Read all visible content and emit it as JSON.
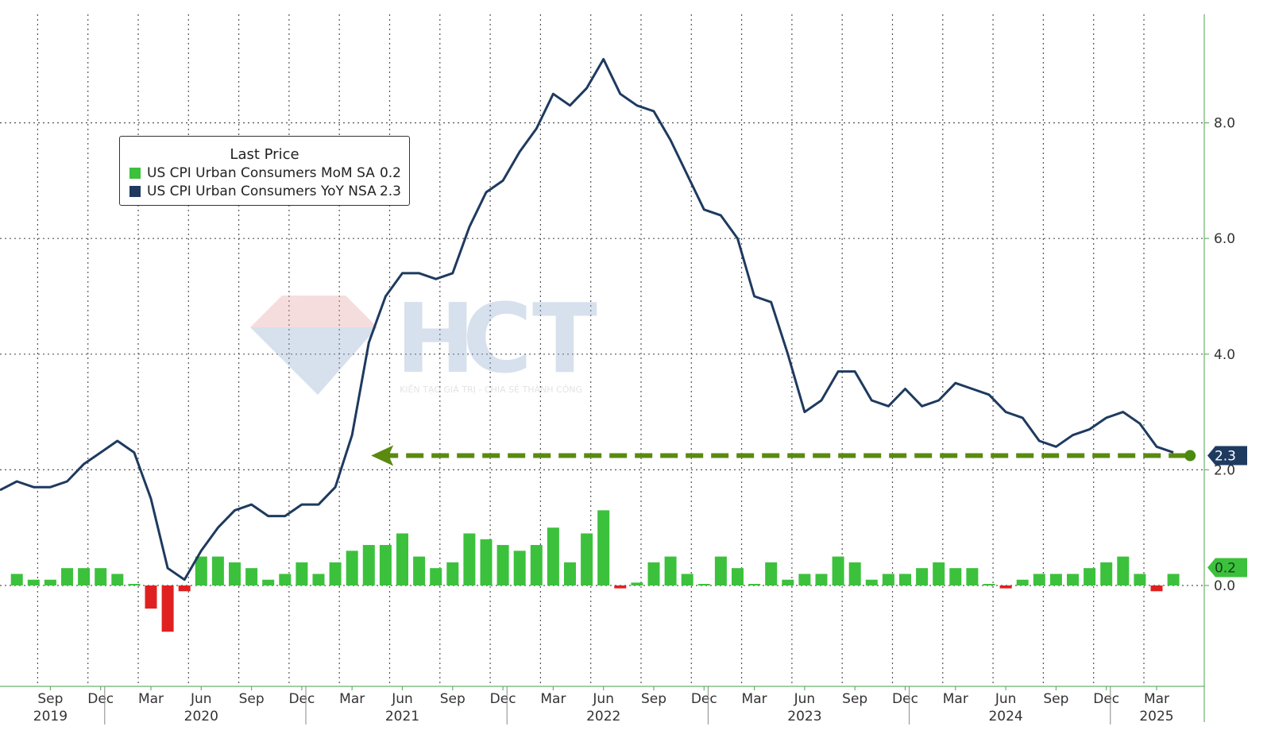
{
  "chart_data": {
    "type": "bar+line",
    "x_start": "2019-07",
    "x_axis": {
      "month_labels": [
        {
          "label": "Sep",
          "date": "2019-09"
        },
        {
          "label": "Dec",
          "date": "2019-12"
        },
        {
          "label": "Mar",
          "date": "2020-03"
        },
        {
          "label": "Jun",
          "date": "2020-06"
        },
        {
          "label": "Sep",
          "date": "2020-09"
        },
        {
          "label": "Dec",
          "date": "2020-12"
        },
        {
          "label": "Mar",
          "date": "2021-03"
        },
        {
          "label": "Jun",
          "date": "2021-06"
        },
        {
          "label": "Sep",
          "date": "2021-09"
        },
        {
          "label": "Dec",
          "date": "2021-12"
        },
        {
          "label": "Mar",
          "date": "2022-03"
        },
        {
          "label": "Jun",
          "date": "2022-06"
        },
        {
          "label": "Sep",
          "date": "2022-09"
        },
        {
          "label": "Dec",
          "date": "2022-12"
        },
        {
          "label": "Mar",
          "date": "2023-03"
        },
        {
          "label": "Jun",
          "date": "2023-06"
        },
        {
          "label": "Sep",
          "date": "2023-09"
        },
        {
          "label": "Dec",
          "date": "2023-12"
        },
        {
          "label": "Mar",
          "date": "2024-03"
        },
        {
          "label": "Jun",
          "date": "2024-06"
        },
        {
          "label": "Sep",
          "date": "2024-09"
        },
        {
          "label": "Dec",
          "date": "2024-12"
        },
        {
          "label": "Mar",
          "date": "2025-03"
        }
      ],
      "year_labels": [
        {
          "label": "2019",
          "date": "2019-09"
        },
        {
          "label": "2020",
          "date": "2020-06"
        },
        {
          "label": "2021",
          "date": "2021-06"
        },
        {
          "label": "2022",
          "date": "2022-06"
        },
        {
          "label": "2023",
          "date": "2023-06"
        },
        {
          "label": "2024",
          "date": "2024-06"
        },
        {
          "label": "2025",
          "date": "2025-03"
        }
      ]
    },
    "y_axis": {
      "side": "right",
      "range": [
        -1.8,
        9.8
      ],
      "tick_labels": [
        "0.0",
        "2.0",
        "4.0",
        "6.0",
        "8.0"
      ],
      "tick_values": [
        0,
        2,
        4,
        6,
        8
      ]
    },
    "grid": true,
    "legend": {
      "title": "Last Price",
      "position": "top-left",
      "entries": [
        {
          "name": "US CPI Urban Consumers MoM SA",
          "value": "0.2",
          "color": "#3cc13c"
        },
        {
          "name": "US CPI Urban Consumers YoY NSA",
          "value": "2.3",
          "color": "#1e3a5f"
        }
      ]
    },
    "series": [
      {
        "name": "US CPI Urban Consumers MoM SA",
        "kind": "bar",
        "positive_color": "#3cc13c",
        "negative_color": "#e02020",
        "values": [
          0.2,
          0.1,
          0.1,
          0.3,
          0.3,
          0.3,
          0.2,
          0.0,
          -0.4,
          -0.8,
          -0.1,
          0.5,
          0.5,
          0.4,
          0.3,
          0.1,
          0.2,
          0.4,
          0.2,
          0.4,
          0.6,
          0.7,
          0.7,
          0.9,
          0.5,
          0.3,
          0.4,
          0.9,
          0.8,
          0.7,
          0.6,
          0.7,
          1.0,
          0.4,
          0.9,
          1.3,
          -0.05,
          0.05,
          0.4,
          0.5,
          0.2,
          0.0,
          0.5,
          0.3,
          0.0,
          0.4,
          0.1,
          0.2,
          0.2,
          0.5,
          0.4,
          0.1,
          0.2,
          0.2,
          0.3,
          0.4,
          0.3,
          0.3,
          0.0,
          -0.05,
          0.1,
          0.2,
          0.2,
          0.2,
          0.3,
          0.4,
          0.5,
          0.2,
          -0.1,
          0.2
        ]
      },
      {
        "name": "US CPI Urban Consumers YoY NSA",
        "kind": "line",
        "color": "#1e3a5f",
        "values": [
          1.8,
          1.7,
          1.7,
          1.8,
          2.1,
          2.3,
          2.5,
          2.3,
          1.5,
          0.3,
          0.1,
          0.6,
          1.0,
          1.3,
          1.4,
          1.2,
          1.2,
          1.4,
          1.4,
          1.7,
          2.6,
          4.2,
          5.0,
          5.4,
          5.4,
          5.3,
          5.4,
          6.2,
          6.8,
          7.0,
          7.5,
          7.9,
          8.5,
          8.3,
          8.6,
          9.1,
          8.5,
          8.3,
          8.2,
          7.7,
          7.1,
          6.5,
          6.4,
          6.0,
          5.0,
          4.9,
          4.0,
          3.0,
          3.2,
          3.7,
          3.7,
          3.2,
          3.1,
          3.4,
          3.1,
          3.2,
          3.5,
          3.4,
          3.3,
          3.0,
          2.9,
          2.5,
          2.4,
          2.6,
          2.7,
          2.9,
          3.0,
          2.8,
          2.4,
          2.3
        ]
      }
    ],
    "annotation": {
      "kind": "dashed-arrow",
      "color": "#5a8a10",
      "value": 2.3,
      "from_date": "2025-05",
      "to_date": "2021-03"
    },
    "last_value_tags": [
      {
        "series": "US CPI Urban Consumers YoY NSA",
        "label": "2.3",
        "value": 2.3,
        "color": "#1e3a5f"
      },
      {
        "series": "US CPI Urban Consumers MoM SA",
        "label": "0.2",
        "value": 0.2,
        "color": "#3cc13c"
      }
    ],
    "watermark": {
      "letters": [
        "H",
        "C",
        "T"
      ],
      "tagline": "KIẾN TẠO GIÁ TRỊ - CHIA SẺ THÀNH CÔNG"
    }
  }
}
